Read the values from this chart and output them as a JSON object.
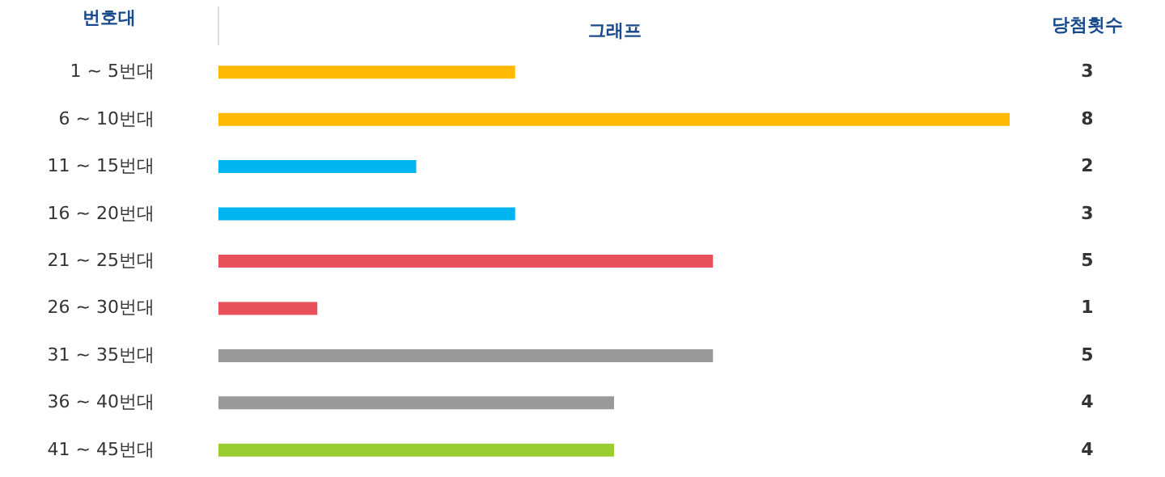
{
  "chart_data": {
    "type": "bar",
    "orientation": "horizontal",
    "xlabel": "그래프",
    "ylabel": "번호대",
    "annotations": [
      "당첨횟수"
    ],
    "categories": [
      "1 ~ 5번대",
      "6 ~ 10번대",
      "11 ~ 15번대",
      "16 ~ 20번대",
      "21 ~ 25번대",
      "26 ~ 30번대",
      "31 ~ 35번대",
      "36 ~ 40번대",
      "41 ~ 45번대"
    ],
    "values": [
      3,
      8,
      2,
      3,
      5,
      1,
      5,
      4,
      4
    ],
    "colors": [
      "#ffb900",
      "#ffb900",
      "#00b4f0",
      "#00b4f0",
      "#e8505b",
      "#e8505b",
      "#999999",
      "#999999",
      "#9acd32"
    ],
    "xlim": [
      0,
      8
    ],
    "data_labels": true
  }
}
